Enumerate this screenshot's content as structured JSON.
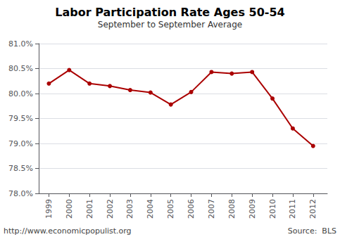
{
  "chart_data": {
    "type": "line",
    "title": "Labor Participation Rate Ages 50-54",
    "subtitle": "September to September Average",
    "annotations": [
      "http://www.economicpopulist.org",
      "Source:  BLS"
    ],
    "x": [
      1999,
      2000,
      2001,
      2002,
      2003,
      2004,
      2005,
      2006,
      2007,
      2008,
      2009,
      2010,
      2011,
      2012
    ],
    "values": [
      80.2,
      80.47,
      80.2,
      80.15,
      80.07,
      80.02,
      79.78,
      80.03,
      80.43,
      80.4,
      80.43,
      79.9,
      79.3,
      78.95
    ],
    "color": "#aa0000",
    "marker": "circle",
    "xlim": [
      1998.5,
      2012.7
    ],
    "xticks": [
      1999,
      2000,
      2001,
      2002,
      2003,
      2004,
      2005,
      2006,
      2007,
      2008,
      2009,
      2010,
      2011,
      2012
    ],
    "ylim": [
      78.0,
      81.0
    ],
    "yticks": [
      {
        "value": 78.0,
        "label": "78.0%"
      },
      {
        "value": 78.5,
        "label": "78.5%"
      },
      {
        "value": 79.0,
        "label": "79.0%"
      },
      {
        "value": 79.5,
        "label": "79.5%"
      },
      {
        "value": 80.0,
        "label": "80.0%"
      },
      {
        "value": 80.5,
        "label": "80.5%"
      },
      {
        "value": 81.0,
        "label": "81.0%"
      }
    ],
    "grid": true
  }
}
